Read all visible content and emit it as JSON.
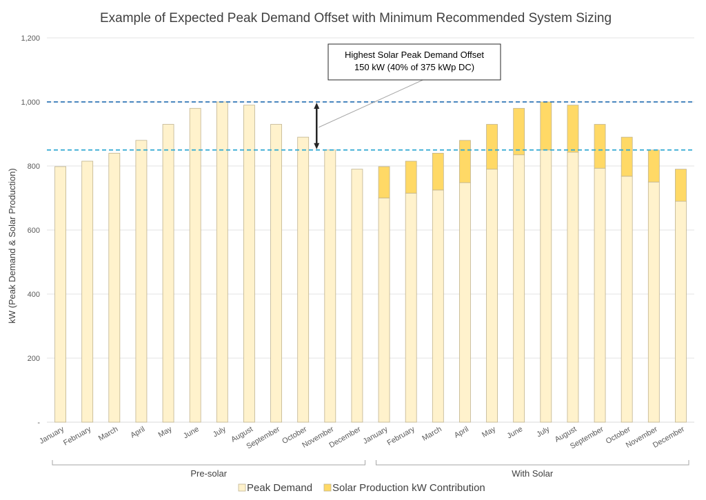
{
  "chart_data": {
    "type": "bar",
    "stacked": true,
    "title": "Example of Expected Peak Demand Offset with Minimum Recommended System Sizing",
    "ylabel": "kW (Peak Demand & Solar Production)",
    "ylim": [
      0,
      1200
    ],
    "y_ticks": [
      {
        "value": 0,
        "label": "-"
      },
      {
        "value": 200,
        "label": "200"
      },
      {
        "value": 400,
        "label": "400"
      },
      {
        "value": 600,
        "label": "600"
      },
      {
        "value": 800,
        "label": "800"
      },
      {
        "value": 1000,
        "label": "1,000"
      },
      {
        "value": 1200,
        "label": "1,200"
      }
    ],
    "grid": true,
    "legend_position": "bottom",
    "categories": [
      "January",
      "February",
      "March",
      "April",
      "May",
      "June",
      "July",
      "August",
      "September",
      "October",
      "November",
      "December",
      "January",
      "February",
      "March",
      "April",
      "May",
      "June",
      "July",
      "August",
      "September",
      "October",
      "November",
      "December"
    ],
    "groups": [
      {
        "label": "Pre-solar",
        "start": 0,
        "end": 11
      },
      {
        "label": "With Solar",
        "start": 12,
        "end": 23
      }
    ],
    "series": [
      {
        "name": "Peak Demand",
        "color": "#FFF2CC",
        "values": [
          798,
          815,
          840,
          880,
          930,
          980,
          1000,
          990,
          930,
          890,
          850,
          790,
          700,
          715,
          725,
          748,
          790,
          835,
          850,
          843,
          793,
          768,
          750,
          690
        ]
      },
      {
        "name": "Solar Production kW Contribution",
        "color": "#FFD966",
        "values": [
          0,
          0,
          0,
          0,
          0,
          0,
          0,
          0,
          0,
          0,
          0,
          0,
          98,
          100,
          115,
          132,
          140,
          145,
          150,
          147,
          137,
          122,
          100,
          100
        ]
      }
    ],
    "reference_lines": [
      {
        "value": 1000,
        "color": "#2E75B6"
      },
      {
        "value": 850,
        "color": "#2EA8D2"
      }
    ],
    "annotation": {
      "line1": "Highest Solar Peak Demand Offset",
      "line2": "150 kW (40% of 375 kWp DC)",
      "from_value": 1000,
      "to_value": 850,
      "at_category": 9.5
    }
  }
}
